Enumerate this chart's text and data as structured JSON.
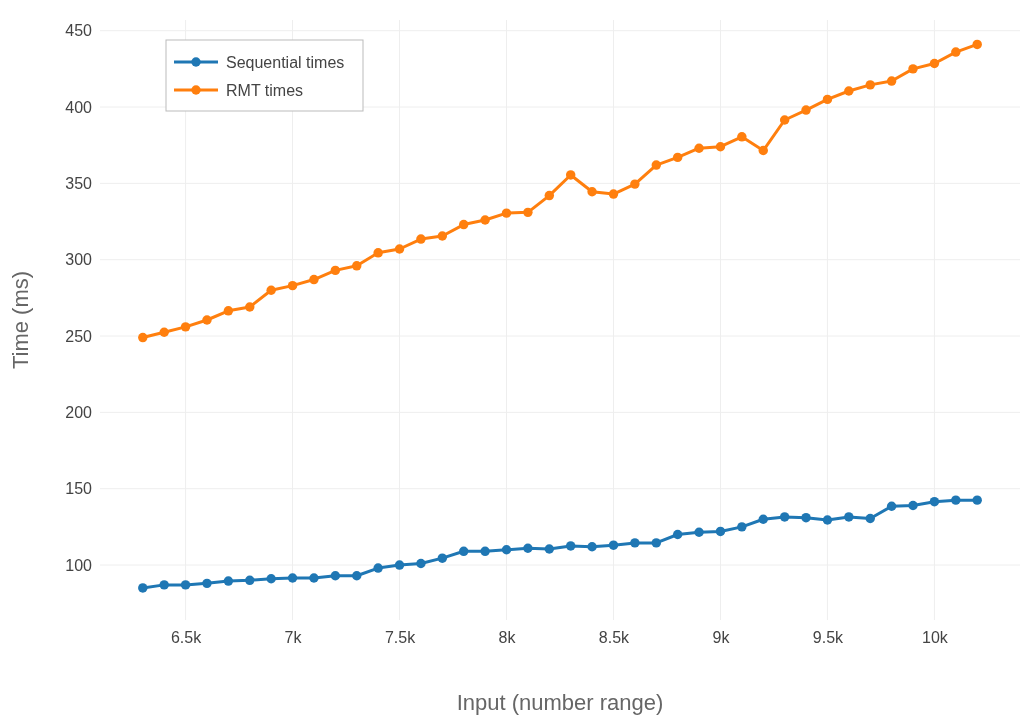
{
  "chart_data": {
    "type": "line",
    "xlabel": "Input (number range)",
    "ylabel": "Time (ms)",
    "x": [
      6300,
      6400,
      6500,
      6600,
      6700,
      6800,
      6900,
      7000,
      7100,
      7200,
      7300,
      7400,
      7500,
      7600,
      7700,
      7800,
      7900,
      8000,
      8100,
      8200,
      8300,
      8400,
      8500,
      8600,
      8700,
      8800,
      8900,
      9000,
      9100,
      9200,
      9300,
      9400,
      9500,
      9600,
      9700,
      9800,
      9900,
      10000,
      10100,
      10200
    ],
    "series": [
      {
        "name": "Sequential times",
        "color": "#1f77b4",
        "values": [
          85,
          87,
          87,
          88,
          89.5,
          90,
          91,
          91.5,
          91.5,
          93,
          93,
          98,
          100,
          101,
          104.5,
          109,
          109,
          110,
          111,
          110.5,
          112.5,
          112,
          113,
          114.5,
          114.5,
          120,
          121.5,
          122,
          125,
          130,
          131.5,
          131,
          129.5,
          131.5,
          130.5,
          138.5,
          139,
          141.5,
          142.5,
          142.5
        ]
      },
      {
        "name": "RMT times",
        "color": "#ff7f0e",
        "values": [
          249,
          252.5,
          256,
          260.5,
          266.5,
          269,
          280,
          283,
          287,
          293,
          296,
          304.5,
          307,
          313.5,
          315.5,
          323,
          326,
          330.5,
          331,
          342,
          355.5,
          344.5,
          343,
          349.5,
          362,
          367,
          373,
          374,
          380.5,
          371.5,
          391.5,
          398,
          405,
          410.5,
          414.5,
          417,
          425,
          428.5,
          436,
          441
        ]
      }
    ],
    "xlim": [
      6100,
      10400
    ],
    "xticks": [
      {
        "value": 6500,
        "label": "6.5k"
      },
      {
        "value": 7000,
        "label": "7k"
      },
      {
        "value": 7500,
        "label": "7.5k"
      },
      {
        "value": 8000,
        "label": "8k"
      },
      {
        "value": 8500,
        "label": "8.5k"
      },
      {
        "value": 9000,
        "label": "9k"
      },
      {
        "value": 9500,
        "label": "9.5k"
      },
      {
        "value": 10000,
        "label": "10k"
      }
    ],
    "ylim": [
      64,
      457
    ],
    "yticks": [
      100,
      150,
      200,
      250,
      300,
      350,
      400,
      450
    ],
    "grid": true,
    "legend": "top left",
    "marker": "circle",
    "line_style": "solid"
  }
}
